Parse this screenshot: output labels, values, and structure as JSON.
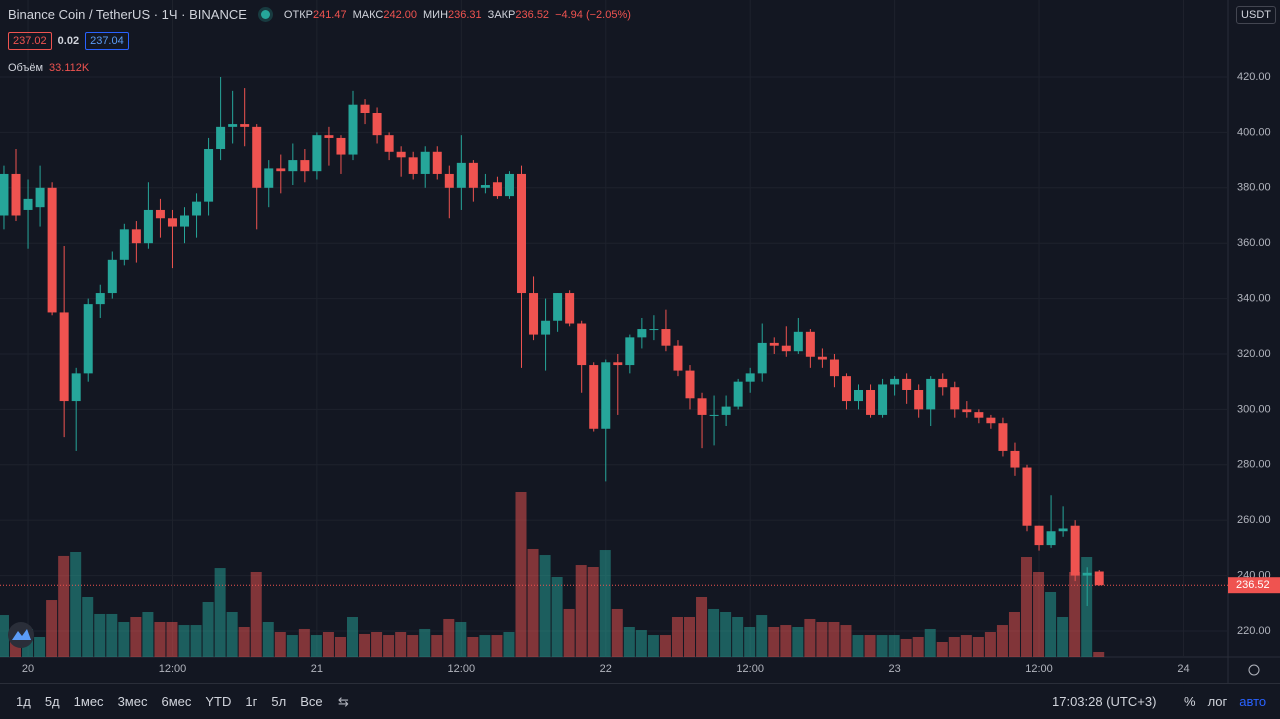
{
  "chart_data": {
    "type": "candlestick",
    "title": "Binance Coin / TetherUS · 1Ч · BINANCE",
    "currency": "USDT",
    "legend": {
      "labels": [
        "ОТКР",
        "МАКС",
        "МИН",
        "ЗАКР"
      ],
      "values": [
        "241.47",
        "242.00",
        "236.31",
        "236.52"
      ],
      "change": "−4.94 (−2.05%)"
    },
    "quotes": [
      "237.02",
      "0.02",
      "237.04"
    ],
    "volume_name": "Объём",
    "volume_value_label": "33.112K",
    "x": [
      -2,
      -1,
      0,
      1,
      2,
      3,
      4,
      5,
      6,
      7,
      8,
      9,
      10,
      11,
      12,
      13,
      14,
      15,
      16,
      17,
      18,
      19,
      20,
      21,
      22,
      23,
      24,
      25,
      26,
      27,
      28,
      29,
      30,
      31,
      32,
      33,
      34,
      35,
      36,
      37,
      38,
      39,
      40,
      41,
      42,
      43,
      44,
      45,
      46,
      47,
      48,
      49,
      50,
      51,
      52,
      53,
      54,
      55,
      56,
      57,
      58,
      59,
      60,
      61,
      62,
      63,
      64,
      65,
      66,
      67,
      68,
      69,
      70,
      71,
      72,
      73,
      74,
      75,
      76,
      77,
      78,
      79,
      80,
      81,
      82,
      83,
      84,
      85,
      86,
      87,
      88,
      89
    ],
    "open": [
      370,
      385,
      372,
      373,
      380,
      335,
      303,
      313,
      338,
      342,
      354,
      365,
      360,
      372,
      369,
      366,
      370,
      375,
      394,
      402,
      403,
      402,
      380,
      387,
      386,
      390,
      386,
      399,
      398,
      392,
      410,
      407,
      399,
      393,
      391,
      385,
      393,
      385,
      380,
      389,
      380,
      382,
      377,
      385,
      342,
      327,
      332,
      342,
      331,
      316,
      293,
      317,
      316,
      326,
      329,
      329,
      323,
      314,
      304,
      298,
      298,
      301,
      310,
      313,
      324,
      323,
      321,
      328,
      319,
      318,
      312,
      303,
      307,
      298,
      309,
      311,
      307,
      300,
      311,
      308,
      300,
      299,
      297,
      295,
      285,
      279,
      258,
      251,
      256,
      258,
      240,
      241.47
    ],
    "high": [
      388,
      394,
      383,
      388,
      382,
      359,
      315,
      340,
      345,
      357,
      367,
      368,
      382,
      376,
      372,
      373,
      378,
      398,
      420,
      415,
      416,
      403,
      390,
      392,
      396,
      394,
      400,
      402,
      399,
      415,
      412,
      409,
      400,
      395,
      393,
      395,
      395,
      388,
      399,
      390,
      385,
      384,
      386,
      388,
      348,
      340,
      342,
      343,
      332,
      317,
      318,
      320,
      327,
      333,
      334,
      336,
      325,
      316,
      306,
      305,
      305,
      311,
      315,
      331,
      326,
      330,
      333,
      329,
      322,
      320,
      313,
      309,
      309,
      311,
      312,
      313,
      309,
      312,
      313,
      310,
      303,
      300,
      298,
      297,
      288,
      280,
      258,
      269,
      265,
      260,
      243,
      242
    ],
    "low": [
      365,
      368,
      358,
      366,
      334,
      290,
      285,
      310,
      333,
      340,
      352,
      353,
      358,
      362,
      351,
      360,
      362,
      370,
      390,
      396,
      395,
      365,
      373,
      378,
      381,
      382,
      383,
      388,
      385,
      390,
      403,
      396,
      390,
      384,
      383,
      380,
      383,
      369,
      372,
      375,
      378,
      376,
      376,
      315,
      325,
      314,
      328,
      330,
      306,
      292,
      274,
      298,
      313,
      322,
      325,
      321,
      312,
      300,
      286,
      287,
      294,
      300,
      306,
      310,
      320,
      319,
      320,
      315,
      315,
      308,
      300,
      300,
      297,
      297,
      305,
      302,
      297,
      294,
      305,
      297,
      297,
      295,
      293,
      283,
      276,
      256,
      249,
      250,
      254,
      238,
      229,
      236.31
    ],
    "close": [
      385,
      370,
      376,
      380,
      335,
      303,
      313,
      338,
      342,
      354,
      365,
      360,
      372,
      369,
      366,
      370,
      375,
      394,
      402,
      403,
      402,
      380,
      387,
      386,
      390,
      386,
      399,
      398,
      392,
      410,
      407,
      399,
      393,
      391,
      385,
      393,
      385,
      380,
      389,
      380,
      381,
      377,
      385,
      342,
      327,
      332,
      342,
      331,
      316,
      293,
      317,
      316,
      326,
      329,
      329,
      323,
      314,
      304,
      298,
      298,
      301,
      310,
      313,
      324,
      323,
      321,
      328,
      319,
      318,
      312,
      303,
      307,
      298,
      309,
      311,
      307,
      300,
      311,
      308,
      300,
      299,
      297,
      295,
      285,
      279,
      258,
      251,
      256,
      257,
      240,
      241,
      236.52
    ],
    "volume": [
      277,
      185,
      185,
      132,
      376,
      667,
      693,
      396,
      284,
      284,
      231,
      264,
      297,
      231,
      231,
      211,
      211,
      363,
      587,
      297,
      198,
      561,
      231,
      165,
      145,
      185,
      145,
      165,
      132,
      264,
      152,
      165,
      145,
      165,
      145,
      185,
      145,
      251,
      231,
      132,
      145,
      145,
      165,
      1089,
      713,
      673,
      528,
      317,
      607,
      594,
      706,
      317,
      198,
      178,
      145,
      145,
      264,
      264,
      396,
      317,
      297,
      264,
      198,
      277,
      198,
      211,
      198,
      251,
      231,
      231,
      211,
      145,
      145,
      145,
      145,
      119,
      132,
      185,
      99,
      132,
      145,
      132,
      165,
      211,
      297,
      660,
      561,
      429,
      264,
      561,
      660,
      33.112
    ],
    "up_color": "#26a69a",
    "down_color": "#ef5350",
    "xlim": [
      -2.33,
      99.7
    ],
    "xticks": [
      {
        "value": 0,
        "label": "20"
      },
      {
        "value": 12,
        "label": "12:00"
      },
      {
        "value": 24,
        "label": "21"
      },
      {
        "value": 36,
        "label": "12:00"
      },
      {
        "value": 48,
        "label": "22"
      },
      {
        "value": 60,
        "label": "12:00"
      },
      {
        "value": 72,
        "label": "23"
      },
      {
        "value": 84,
        "label": "12:00"
      },
      {
        "value": 96,
        "label": "24"
      }
    ],
    "ylim": [
      210.6,
      447.8
    ],
    "yticks": [
      {
        "value": 220,
        "label": "220.00"
      },
      {
        "value": 240,
        "label": "240.00"
      },
      {
        "value": 260,
        "label": "260.00"
      },
      {
        "value": 280,
        "label": "280.00"
      },
      {
        "value": 300,
        "label": "300.00"
      },
      {
        "value": 320,
        "label": "320.00"
      },
      {
        "value": 340,
        "label": "340.00"
      },
      {
        "value": 360,
        "label": "360.00"
      },
      {
        "value": 380,
        "label": "380.00"
      },
      {
        "value": 400,
        "label": "400.00"
      },
      {
        "value": 420,
        "label": "420.00"
      }
    ],
    "grid": true,
    "toolbar": {
      "ranges": [
        "1д",
        "5д",
        "1мес",
        "3мес",
        "6мес",
        "YTD",
        "1г",
        "5л",
        "Все"
      ],
      "time": "17:03:28 (UTC+3)",
      "options": [
        "%",
        "лог",
        "авто"
      ]
    }
  }
}
